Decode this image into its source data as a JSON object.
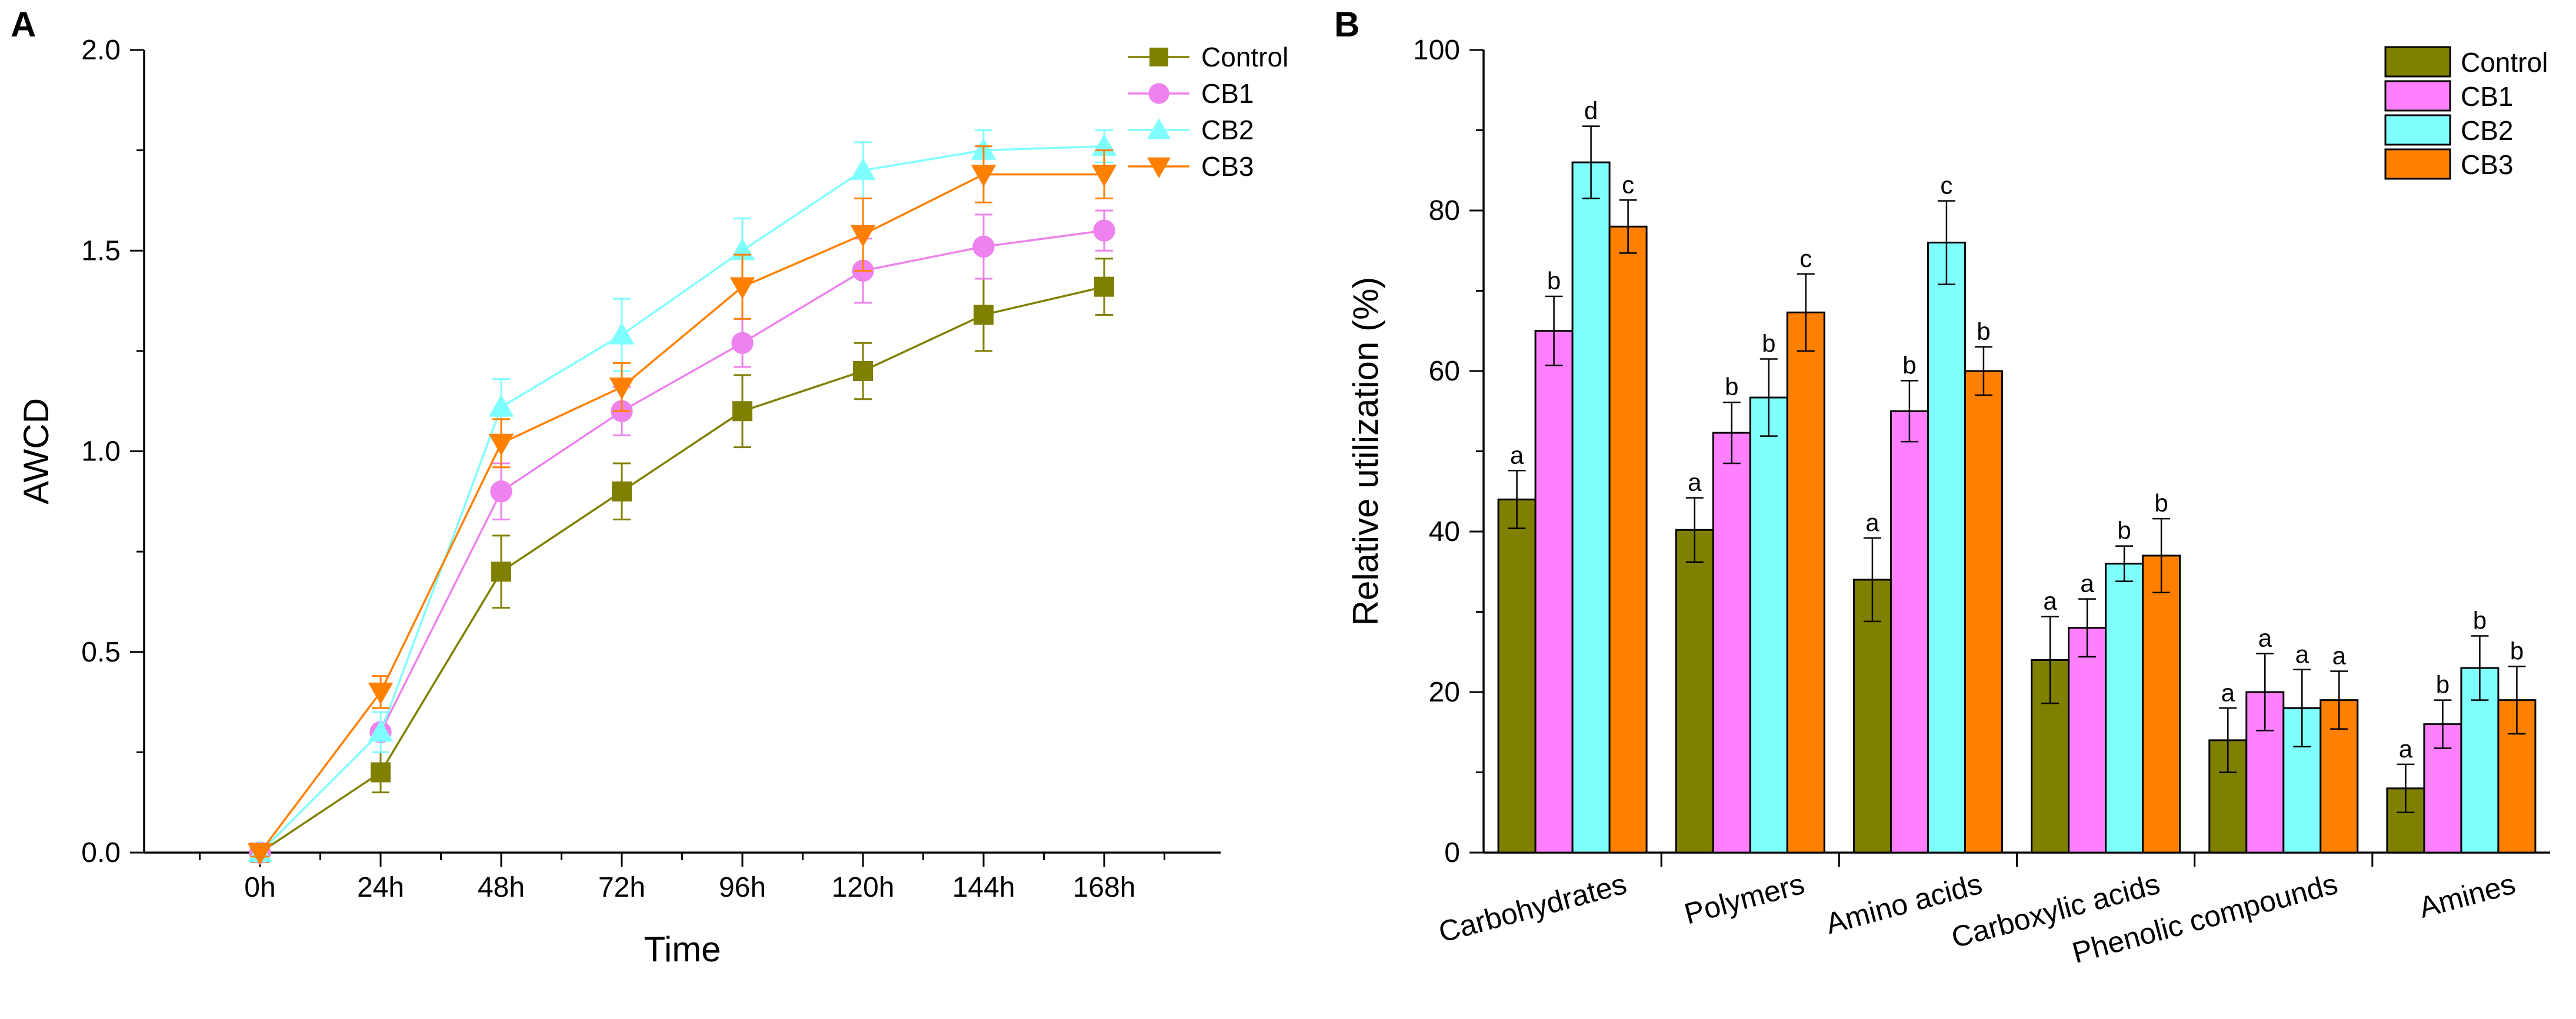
{
  "panels": {
    "a": "A",
    "b": "B"
  },
  "chart_data": [
    {
      "type": "line",
      "panel": "A",
      "title": "",
      "xlabel": "Time",
      "ylabel": "AWCD",
      "categories": [
        "0h",
        "24h",
        "48h",
        "72h",
        "96h",
        "120h",
        "144h",
        "168h"
      ],
      "ylim": [
        0,
        2.0
      ],
      "yticks": [
        "0.0",
        "0.5",
        "1.0",
        "1.5",
        "2.0"
      ],
      "legend_position": "top-right",
      "series": [
        {
          "name": "Control",
          "color": "#808000",
          "marker": "square",
          "values": [
            0.0,
            0.2,
            0.7,
            0.9,
            1.1,
            1.2,
            1.34,
            1.41
          ],
          "errors": [
            0.01,
            0.05,
            0.09,
            0.07,
            0.09,
            0.07,
            0.09,
            0.07
          ]
        },
        {
          "name": "CB1",
          "color": "#ee82ee",
          "marker": "circle",
          "values": [
            0.0,
            0.3,
            0.9,
            1.1,
            1.27,
            1.45,
            1.51,
            1.55
          ],
          "errors": [
            0.01,
            0.05,
            0.07,
            0.06,
            0.06,
            0.08,
            0.08,
            0.05
          ]
        },
        {
          "name": "CB2",
          "color": "#7fffff",
          "marker": "triangle-up",
          "values": [
            0.0,
            0.3,
            1.11,
            1.29,
            1.5,
            1.7,
            1.75,
            1.76
          ],
          "errors": [
            0.01,
            0.05,
            0.07,
            0.09,
            0.08,
            0.07,
            0.05,
            0.04
          ]
        },
        {
          "name": "CB3",
          "color": "#ff8000",
          "marker": "triangle-down",
          "values": [
            0.0,
            0.4,
            1.02,
            1.16,
            1.41,
            1.54,
            1.69,
            1.69
          ],
          "errors": [
            0.01,
            0.04,
            0.06,
            0.06,
            0.08,
            0.09,
            0.07,
            0.06
          ]
        }
      ]
    },
    {
      "type": "bar",
      "panel": "B",
      "title": "",
      "xlabel": "",
      "ylabel": "Relative utilization (%)",
      "categories": [
        "Carbohydrates",
        "Polymers",
        "Amino acids",
        "Carboxylic acids",
        "Phenolic compounds",
        "Amines"
      ],
      "ylim": [
        0,
        100
      ],
      "yticks": [
        "0",
        "20",
        "40",
        "60",
        "80",
        "100"
      ],
      "legend_position": "top-right",
      "series": [
        {
          "name": "Control",
          "color": "#808000",
          "values": [
            44,
            40.2,
            34,
            24,
            14,
            8
          ],
          "errors": [
            3.6,
            4.0,
            5.2,
            5.4,
            4.0,
            3.0
          ],
          "labels": [
            "a",
            "a",
            "a",
            "a",
            "a",
            "a"
          ]
        },
        {
          "name": "CB1",
          "color": "#ff80ff",
          "values": [
            65,
            52.3,
            55,
            28,
            20,
            16
          ],
          "errors": [
            4.3,
            3.8,
            3.8,
            3.6,
            4.8,
            3.0
          ],
          "labels": [
            "b",
            "b",
            "b",
            "a",
            "a",
            "b"
          ]
        },
        {
          "name": "CB2",
          "color": "#80ffff",
          "values": [
            86,
            56.7,
            76,
            36,
            18,
            23
          ],
          "errors": [
            4.5,
            4.8,
            5.2,
            2.2,
            4.8,
            4.0
          ],
          "labels": [
            "d",
            "b",
            "c",
            "b",
            "a",
            "b"
          ]
        },
        {
          "name": "CB3",
          "color": "#ff8000",
          "values": [
            78,
            67.3,
            60,
            37,
            19,
            19
          ],
          "errors": [
            3.3,
            4.8,
            3.0,
            4.6,
            3.6,
            4.2
          ],
          "labels": [
            "c",
            "c",
            "b",
            "b",
            "a",
            "b"
          ]
        }
      ]
    }
  ]
}
